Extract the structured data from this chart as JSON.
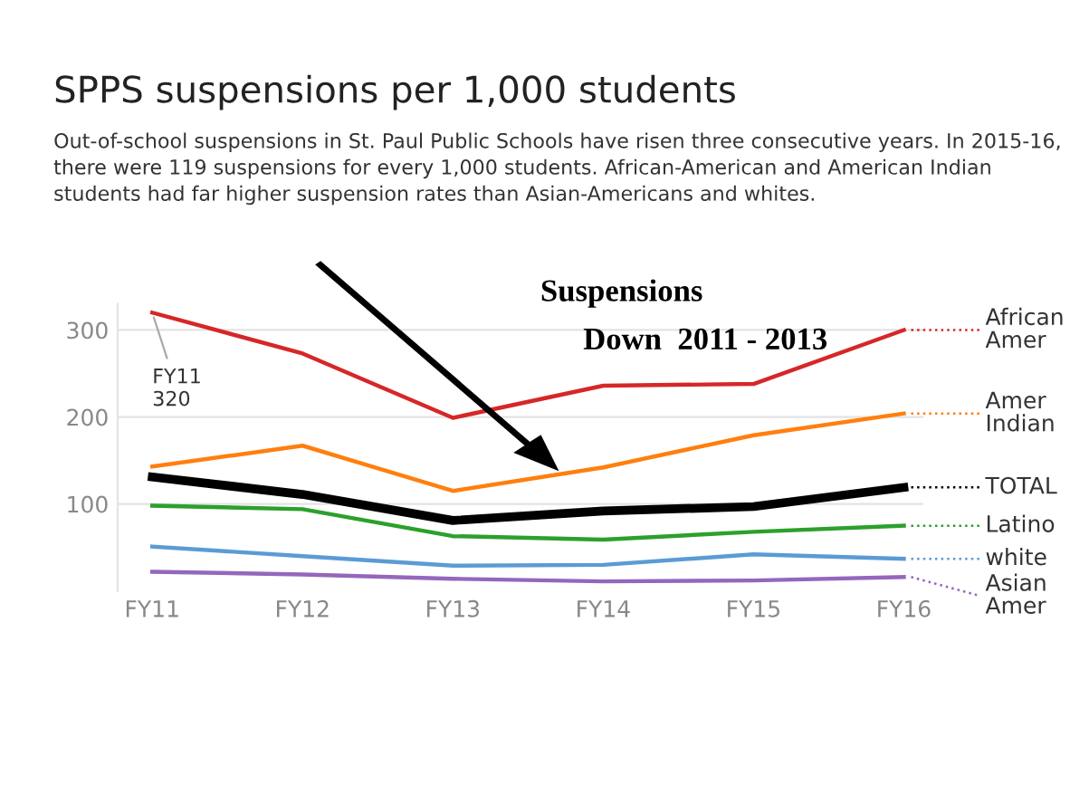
{
  "chart_data": {
    "type": "line",
    "title": "SPPS suspensions per 1,000 students",
    "subtitle": "Out-of-school suspensions in St. Paul Public Schools have risen three consecutive years. In 2015-16, there were 119 suspensions for every 1,000 students. African-American and American Indian students had far higher suspension rates than Asian-Americans and whites.",
    "categories": [
      "FY11",
      "FY12",
      "FY13",
      "FY14",
      "FY15",
      "FY16"
    ],
    "series": [
      {
        "name": "African\nAmer",
        "color": "#d62728",
        "values": [
          320,
          273,
          199,
          236,
          238,
          300
        ]
      },
      {
        "name": "Amer\nIndian",
        "color": "#ff7f0e",
        "values": [
          143,
          167,
          115,
          142,
          179,
          204
        ]
      },
      {
        "name": "TOTAL",
        "color": "#000000",
        "values": [
          131,
          111,
          81,
          92,
          97,
          119
        ]
      },
      {
        "name": "Latino",
        "color": "#2ca02c",
        "values": [
          98,
          94,
          63,
          59,
          68,
          75
        ]
      },
      {
        "name": "white",
        "color": "#5b9bd5",
        "values": [
          51,
          40,
          29,
          30,
          42,
          37
        ]
      },
      {
        "name": "Asian\nAmer",
        "color": "#9467bd",
        "values": [
          22,
          19,
          14,
          11,
          12,
          16
        ]
      }
    ],
    "ylim": [
      0,
      330
    ],
    "yticks": [
      100,
      200,
      300
    ],
    "grid": "y",
    "legend": "right",
    "marker": "none",
    "line_style": "solid",
    "annotations": [
      "Suspensions",
      "Down  2011 - 2013",
      {
        "text": "FY11\n320",
        "x": "FY11",
        "y": 320
      }
    ]
  }
}
